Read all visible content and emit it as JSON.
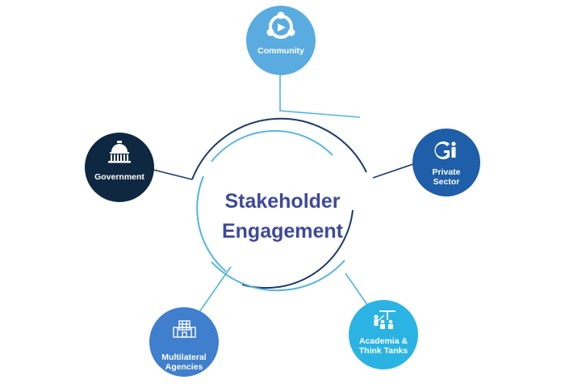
{
  "center": {
    "line1": "Stakeholder",
    "line2": "Engagement"
  },
  "nodes": {
    "community": {
      "label_lines": [
        "Community"
      ],
      "color": "#5aace0",
      "icon": "community-icon"
    },
    "government": {
      "label_lines": [
        "Government"
      ],
      "color": "#0e2842",
      "icon": "capitol-building-icon"
    },
    "private": {
      "label_lines": [
        "Private",
        "Sector"
      ],
      "color": "#1f5ea8",
      "icon": "gi-logo-icon"
    },
    "multilateral": {
      "label_lines": [
        "Multilateral",
        "Agencies"
      ],
      "color": "#3f7fcd",
      "icon": "building-icon"
    },
    "academia": {
      "label_lines": [
        "Academia &",
        "Think Tanks"
      ],
      "color": "#2bb3e3",
      "icon": "presentation-icon"
    }
  },
  "colors": {
    "dark_ring": "#1b3a6b",
    "light_ring": "#4fb4e0",
    "title": "#3d4a9a"
  }
}
